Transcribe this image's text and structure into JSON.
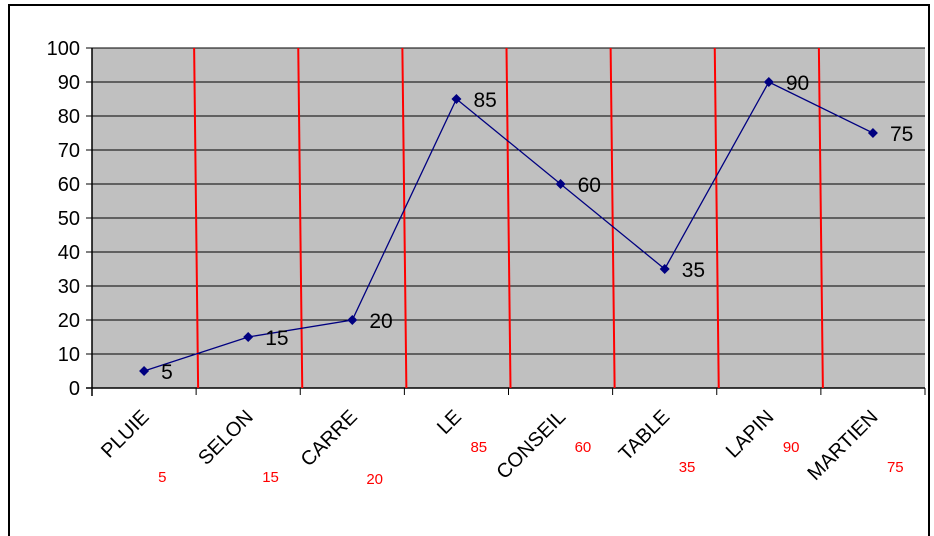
{
  "chart_data": {
    "type": "line",
    "categories": [
      "PLUIE",
      "SELON",
      "CARRE",
      "LE",
      "CONSEIL",
      "TABLE",
      "LAPIN",
      "MARTIEN"
    ],
    "values": [
      5,
      15,
      20,
      85,
      60,
      35,
      90,
      75
    ],
    "category_annotations": [
      "5",
      "15",
      "20",
      "85",
      "60",
      "35",
      "90",
      "75"
    ],
    "ylim": [
      0,
      100
    ],
    "yticks": [
      "0",
      "10",
      "20",
      "30",
      "40",
      "50",
      "60",
      "70",
      "80",
      "90",
      "100"
    ],
    "grid": true,
    "colors": {
      "plot_background": "#c0c0c0",
      "series_line": "#000080",
      "marker": "#000080",
      "separators": "#ff0000",
      "annotations": "#ff0000"
    },
    "marker": "diamond",
    "data_labels": true
  }
}
